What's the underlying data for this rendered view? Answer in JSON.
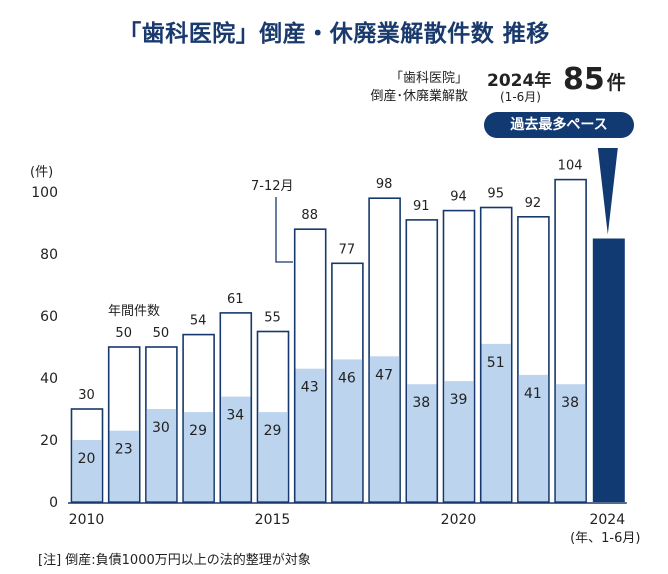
{
  "title": "「歯科医院」倒産・休廃業解散件数 推移",
  "annotation": {
    "line1": "「歯科医院」",
    "line2": "倒産･休廃業解散",
    "year_label": "2024年",
    "period_label": "(1-6月)",
    "count_value": "85",
    "count_unit": "件",
    "badge": "過去最多ペース"
  },
  "footnote": "[注]  倒産:負債1000万円以上の法的整理が対象",
  "chart_data": {
    "type": "bar",
    "categories": [
      "2010",
      "2011",
      "2012",
      "2013",
      "2014",
      "2015",
      "2016",
      "2017",
      "2018",
      "2019",
      "2020",
      "2021",
      "2022",
      "2023",
      "2024"
    ],
    "x_tick_labels": [
      "2010",
      "2015",
      "2020",
      "2024"
    ],
    "x_unit_label": "(年、1-6月)",
    "y_unit_label": "(件)",
    "ylim": [
      0,
      100
    ],
    "y_ticks": [
      0,
      20,
      40,
      60,
      80,
      100
    ],
    "series": [
      {
        "values": [
          30,
          50,
          50,
          54,
          61,
          55,
          88,
          77,
          98,
          91,
          94,
          95,
          92,
          104,
          null
        ]
      },
      {
        "name": "1-6月",
        "values": [
          20,
          23,
          30,
          29,
          34,
          29,
          43,
          46,
          47,
          38,
          39,
          51,
          41,
          38,
          85
        ]
      }
    ],
    "series_labels": {
      "annual": "年間件数",
      "second_half": "7-12月"
    },
    "grid": false,
    "colors": {
      "annual_fill": "#ffffff",
      "h1_fill": "#bcd4ee",
      "outline": "#17386c",
      "highlight": "#123a72"
    }
  }
}
